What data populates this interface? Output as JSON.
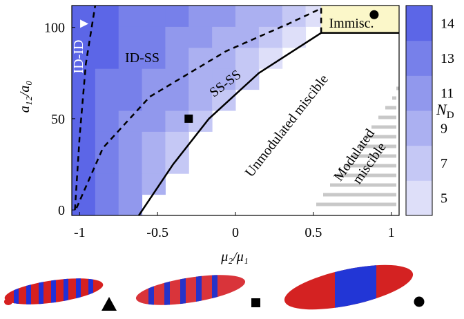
{
  "chart_data": {
    "type": "heatmap",
    "xlabel": "μ₂/μ₁",
    "ylabel": "a₁₂/a₀",
    "xlim": [
      -1.05,
      1.05
    ],
    "ylim": [
      -3,
      112
    ],
    "xticks": [
      -1,
      -0.5,
      0,
      0.5,
      1
    ],
    "yticks": [
      0,
      50,
      100
    ],
    "x_edges": [
      -1.05,
      -0.9,
      -0.75,
      -0.6,
      -0.45,
      -0.3,
      -0.15,
      0,
      0.15,
      0.3,
      0.45,
      0.6,
      0.75,
      0.9,
      1.05
    ],
    "y_edges": [
      -3,
      8.5,
      20,
      31.5,
      43,
      54.5,
      66,
      77.5,
      89,
      100.5,
      112
    ],
    "z": [
      [
        14,
        13,
        11,
        null,
        null,
        null,
        null,
        null,
        null,
        null,
        null,
        null,
        null,
        null
      ],
      [
        14,
        13,
        11,
        9,
        null,
        null,
        null,
        null,
        null,
        null,
        null,
        null,
        null,
        null
      ],
      [
        14,
        13,
        11,
        9,
        7,
        null,
        null,
        null,
        null,
        null,
        null,
        null,
        null,
        null
      ],
      [
        14,
        13,
        11,
        9,
        7,
        null,
        null,
        null,
        null,
        null,
        null,
        null,
        null,
        null
      ],
      [
        14,
        13,
        11,
        11,
        9,
        7,
        null,
        null,
        null,
        null,
        null,
        null,
        null,
        null
      ],
      [
        14,
        13,
        13,
        11,
        11,
        9,
        7,
        null,
        null,
        null,
        null,
        null,
        null,
        null
      ],
      [
        14,
        13,
        13,
        11,
        11,
        9,
        9,
        7,
        null,
        null,
        null,
        null,
        null,
        null
      ],
      [
        14,
        14,
        13,
        13,
        11,
        9,
        9,
        7,
        5,
        null,
        null,
        null,
        null,
        null
      ],
      [
        14,
        14,
        13,
        13,
        11,
        11,
        9,
        9,
        7,
        5,
        null,
        null,
        null,
        null
      ],
      [
        14,
        14,
        13,
        13,
        13,
        11,
        11,
        9,
        9,
        7,
        5,
        null,
        null,
        null
      ]
    ],
    "colorbar": {
      "label": "N",
      "label_sub": "D",
      "levels": [
        5,
        7,
        9,
        11,
        13,
        14
      ],
      "colors": [
        "#dedff9",
        "#c5c8f5",
        "#abb0f1",
        "#9198ed",
        "#7780ea",
        "#5c66e7"
      ]
    },
    "immiscible_region": {
      "x": [
        0.55,
        1.05
      ],
      "y": [
        97,
        112
      ],
      "color": "#fbf7c9"
    },
    "lines": [
      {
        "style": "dashed",
        "x": [
          -1.03,
          -1.0,
          -0.96,
          -0.9
        ],
        "y": [
          0,
          40,
          80,
          112
        ]
      },
      {
        "style": "dashed",
        "x": [
          -1.02,
          -0.85,
          -0.55,
          -0.06,
          0.34,
          0.54
        ],
        "y": [
          1,
          34,
          62,
          87,
          102,
          110
        ]
      },
      {
        "style": "solid",
        "x": [
          -0.62,
          -0.4,
          -0.17,
          0.15,
          0.55,
          1.05
        ],
        "y": [
          -3,
          25,
          50,
          75,
          97,
          97
        ]
      },
      {
        "style": "dashed",
        "x": [
          0.55,
          0.55
        ],
        "y": [
          97,
          112
        ]
      }
    ],
    "markers": [
      {
        "shape": "square",
        "x": -0.3,
        "y": 50,
        "color": "#000000"
      },
      {
        "shape": "circle",
        "x": 0.89,
        "y": 107,
        "color": "#000000"
      },
      {
        "shape": "triangle",
        "x": -0.97,
        "y": 102,
        "color": "#ffffff"
      }
    ],
    "annotations": [
      "ID-ID",
      "ID-SS",
      "SS-SS",
      "Unmodulated miscible",
      "Modulated",
      "miscible",
      "Immisc."
    ]
  }
}
